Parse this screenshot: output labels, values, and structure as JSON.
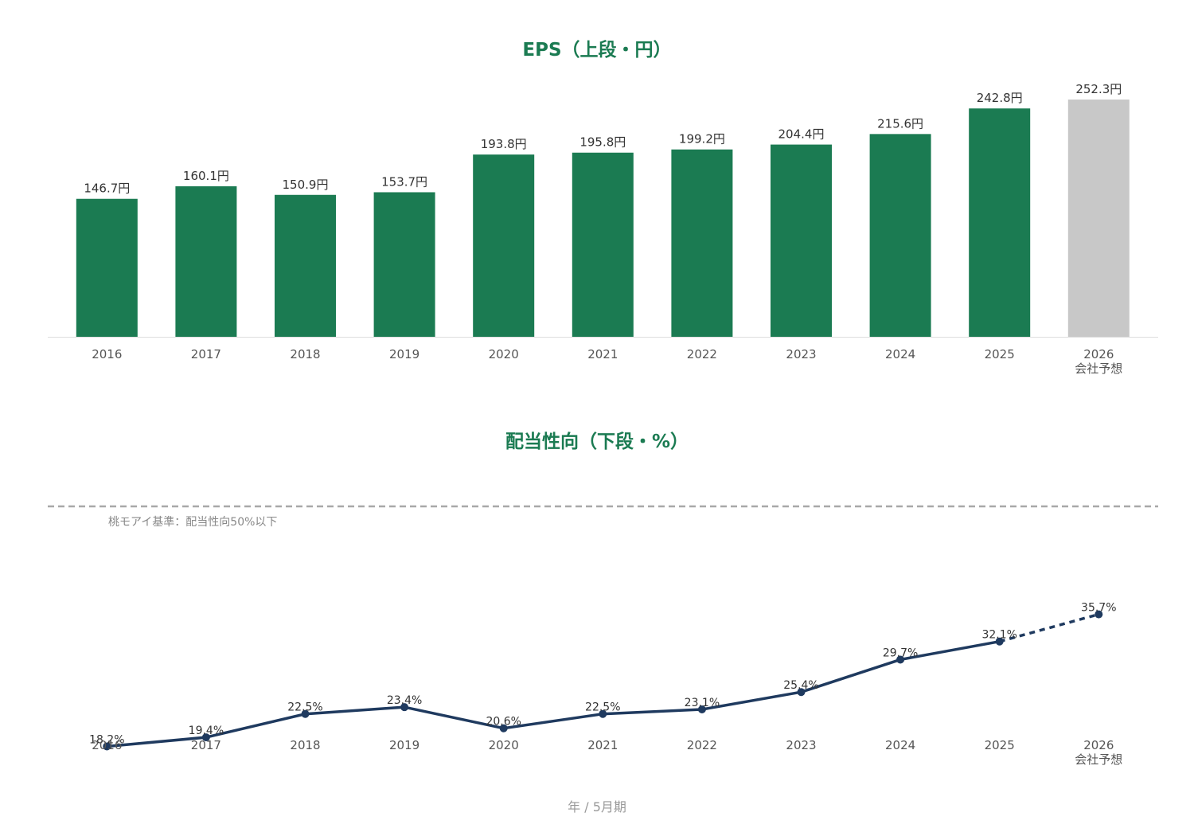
{
  "colors": {
    "title": "#1b7b52",
    "bar": "#1b7b52",
    "forecast_bar": "#c8c8c8",
    "line": "#1f3a5f",
    "reference_line": "#a8a8a8"
  },
  "footer": "年 / 5月期",
  "chart_data": [
    {
      "type": "bar",
      "title": "EPS（上段・円）",
      "categories": [
        "2016",
        "2017",
        "2018",
        "2019",
        "2020",
        "2021",
        "2022",
        "2023",
        "2024",
        "2025",
        "2026"
      ],
      "category_sublabels": [
        "",
        "",
        "",
        "",
        "",
        "",
        "",
        "",
        "",
        "",
        "会社予想"
      ],
      "values": [
        146.7,
        160.1,
        150.9,
        153.7,
        193.8,
        195.8,
        199.2,
        204.4,
        215.6,
        242.8,
        252.3
      ],
      "value_labels": [
        "146.7円",
        "160.1円",
        "150.9円",
        "153.7円",
        "193.8円",
        "195.8円",
        "199.2円",
        "204.4円",
        "215.6円",
        "242.8円",
        "252.3円"
      ],
      "forecast_index": 10,
      "ylim": [
        0,
        265
      ],
      "grid": false
    },
    {
      "type": "line",
      "title": "配当性向（下段・%）",
      "categories": [
        "2016",
        "2017",
        "2018",
        "2019",
        "2020",
        "2021",
        "2022",
        "2023",
        "2024",
        "2025",
        "2026"
      ],
      "category_sublabels": [
        "",
        "",
        "",
        "",
        "",
        "",
        "",
        "",
        "",
        "",
        "会社予想"
      ],
      "values": [
        18.2,
        19.4,
        22.5,
        23.4,
        20.6,
        22.5,
        23.1,
        25.4,
        29.7,
        32.1,
        35.7
      ],
      "value_labels": [
        "18.2%",
        "19.4%",
        "22.5%",
        "23.4%",
        "20.6%",
        "22.5%",
        "23.1%",
        "25.4%",
        "29.7%",
        "32.1%",
        "35.7%"
      ],
      "forecast_index": 10,
      "ylim": [
        0,
        50
      ],
      "reference_line": {
        "value": 50,
        "label": "桃モアイ基準：配当性向50%以下"
      },
      "grid": false
    }
  ]
}
